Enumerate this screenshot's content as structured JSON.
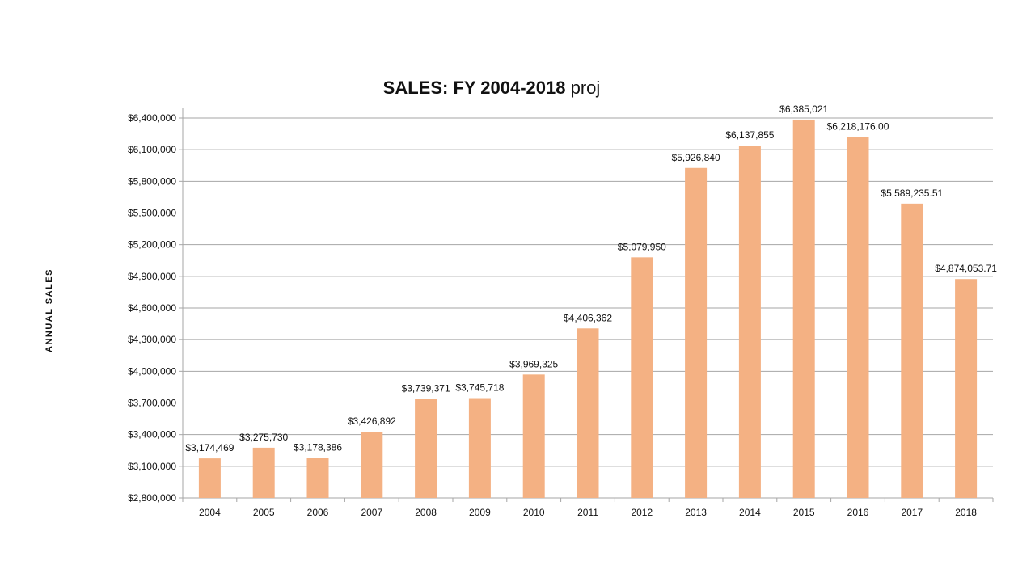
{
  "chart_data": {
    "type": "bar",
    "title": "SALES: FY 2004-2018",
    "title_suffix": "proj",
    "xlabel": "",
    "ylabel": "ANNUAL SALES",
    "categories": [
      "2004",
      "2005",
      "2006",
      "2007",
      "2008",
      "2009",
      "2010",
      "2011",
      "2012",
      "2013",
      "2014",
      "2015",
      "2016",
      "2017",
      "2018"
    ],
    "values": [
      3174469,
      3275730,
      3178386,
      3426892,
      3739371,
      3745718,
      3969325,
      4406362,
      5079950,
      5926840,
      6137855,
      6385021,
      6218176.0,
      5589235.51,
      4874053.71
    ],
    "data_labels": [
      "$3,174,469",
      "$3,275,730",
      "$3,178,386",
      "$3,426,892",
      "$3,739,371",
      "$3,745,718",
      "$3,969,325",
      "$4,406,362",
      "$5,079,950",
      "$5,926,840",
      "$6,137,855",
      "$6,385,021",
      "$6,218,176.00",
      "$5,589,235.51",
      "$4,874,053.71"
    ],
    "ylim": [
      2800000,
      6400000
    ],
    "y_ticks": [
      2800000,
      3100000,
      3400000,
      3700000,
      4000000,
      4300000,
      4600000,
      4900000,
      5200000,
      5500000,
      5800000,
      6100000,
      6400000
    ],
    "y_tick_labels": [
      "$2,800,000",
      "$3,100,000",
      "$3,400,000",
      "$3,700,000",
      "$4,000,000",
      "$4,300,000",
      "$4,600,000",
      "$4,900,000",
      "$5,200,000",
      "$5,500,000",
      "$5,800,000",
      "$6,100,000",
      "$6,400,000"
    ],
    "grid": true,
    "legend": "none",
    "bar_color": "#F4B183",
    "grid_color": "#A6A6A6",
    "text_color": "#111111"
  }
}
